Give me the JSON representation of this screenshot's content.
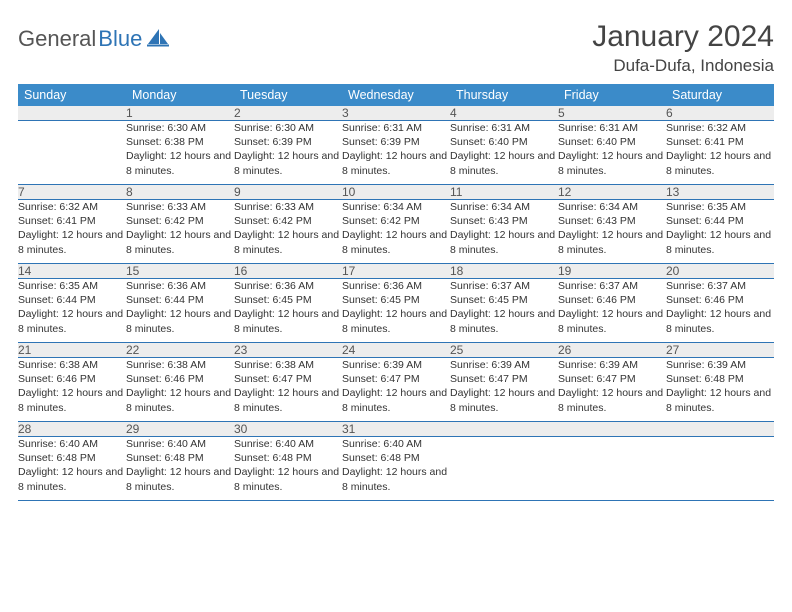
{
  "brand": {
    "text_general": "General",
    "text_blue": "Blue"
  },
  "title": {
    "month": "January 2024",
    "location": "Dufa-Dufa, Indonesia"
  },
  "colors": {
    "header_bg": "#3b8bc9",
    "header_text": "#ffffff",
    "daynum_bg": "#ededed",
    "row_divider": "#2e74b5",
    "brand_blue": "#2e74b5"
  },
  "day_headers": [
    "Sunday",
    "Monday",
    "Tuesday",
    "Wednesday",
    "Thursday",
    "Friday",
    "Saturday"
  ],
  "weeks": [
    {
      "nums": [
        "",
        "1",
        "2",
        "3",
        "4",
        "5",
        "6"
      ],
      "cells": [
        null,
        {
          "sr": "6:30 AM",
          "ss": "6:38 PM",
          "dl": "12 hours and 8 minutes."
        },
        {
          "sr": "6:30 AM",
          "ss": "6:39 PM",
          "dl": "12 hours and 8 minutes."
        },
        {
          "sr": "6:31 AM",
          "ss": "6:39 PM",
          "dl": "12 hours and 8 minutes."
        },
        {
          "sr": "6:31 AM",
          "ss": "6:40 PM",
          "dl": "12 hours and 8 minutes."
        },
        {
          "sr": "6:31 AM",
          "ss": "6:40 PM",
          "dl": "12 hours and 8 minutes."
        },
        {
          "sr": "6:32 AM",
          "ss": "6:41 PM",
          "dl": "12 hours and 8 minutes."
        }
      ]
    },
    {
      "nums": [
        "7",
        "8",
        "9",
        "10",
        "11",
        "12",
        "13"
      ],
      "cells": [
        {
          "sr": "6:32 AM",
          "ss": "6:41 PM",
          "dl": "12 hours and 8 minutes."
        },
        {
          "sr": "6:33 AM",
          "ss": "6:42 PM",
          "dl": "12 hours and 8 minutes."
        },
        {
          "sr": "6:33 AM",
          "ss": "6:42 PM",
          "dl": "12 hours and 8 minutes."
        },
        {
          "sr": "6:34 AM",
          "ss": "6:42 PM",
          "dl": "12 hours and 8 minutes."
        },
        {
          "sr": "6:34 AM",
          "ss": "6:43 PM",
          "dl": "12 hours and 8 minutes."
        },
        {
          "sr": "6:34 AM",
          "ss": "6:43 PM",
          "dl": "12 hours and 8 minutes."
        },
        {
          "sr": "6:35 AM",
          "ss": "6:44 PM",
          "dl": "12 hours and 8 minutes."
        }
      ]
    },
    {
      "nums": [
        "14",
        "15",
        "16",
        "17",
        "18",
        "19",
        "20"
      ],
      "cells": [
        {
          "sr": "6:35 AM",
          "ss": "6:44 PM",
          "dl": "12 hours and 8 minutes."
        },
        {
          "sr": "6:36 AM",
          "ss": "6:44 PM",
          "dl": "12 hours and 8 minutes."
        },
        {
          "sr": "6:36 AM",
          "ss": "6:45 PM",
          "dl": "12 hours and 8 minutes."
        },
        {
          "sr": "6:36 AM",
          "ss": "6:45 PM",
          "dl": "12 hours and 8 minutes."
        },
        {
          "sr": "6:37 AM",
          "ss": "6:45 PM",
          "dl": "12 hours and 8 minutes."
        },
        {
          "sr": "6:37 AM",
          "ss": "6:46 PM",
          "dl": "12 hours and 8 minutes."
        },
        {
          "sr": "6:37 AM",
          "ss": "6:46 PM",
          "dl": "12 hours and 8 minutes."
        }
      ]
    },
    {
      "nums": [
        "21",
        "22",
        "23",
        "24",
        "25",
        "26",
        "27"
      ],
      "cells": [
        {
          "sr": "6:38 AM",
          "ss": "6:46 PM",
          "dl": "12 hours and 8 minutes."
        },
        {
          "sr": "6:38 AM",
          "ss": "6:46 PM",
          "dl": "12 hours and 8 minutes."
        },
        {
          "sr": "6:38 AM",
          "ss": "6:47 PM",
          "dl": "12 hours and 8 minutes."
        },
        {
          "sr": "6:39 AM",
          "ss": "6:47 PM",
          "dl": "12 hours and 8 minutes."
        },
        {
          "sr": "6:39 AM",
          "ss": "6:47 PM",
          "dl": "12 hours and 8 minutes."
        },
        {
          "sr": "6:39 AM",
          "ss": "6:47 PM",
          "dl": "12 hours and 8 minutes."
        },
        {
          "sr": "6:39 AM",
          "ss": "6:48 PM",
          "dl": "12 hours and 8 minutes."
        }
      ]
    },
    {
      "nums": [
        "28",
        "29",
        "30",
        "31",
        "",
        "",
        ""
      ],
      "cells": [
        {
          "sr": "6:40 AM",
          "ss": "6:48 PM",
          "dl": "12 hours and 8 minutes."
        },
        {
          "sr": "6:40 AM",
          "ss": "6:48 PM",
          "dl": "12 hours and 8 minutes."
        },
        {
          "sr": "6:40 AM",
          "ss": "6:48 PM",
          "dl": "12 hours and 8 minutes."
        },
        {
          "sr": "6:40 AM",
          "ss": "6:48 PM",
          "dl": "12 hours and 8 minutes."
        },
        null,
        null,
        null
      ]
    }
  ],
  "labels": {
    "sunrise": "Sunrise: ",
    "sunset": "Sunset: ",
    "daylight": "Daylight: "
  }
}
